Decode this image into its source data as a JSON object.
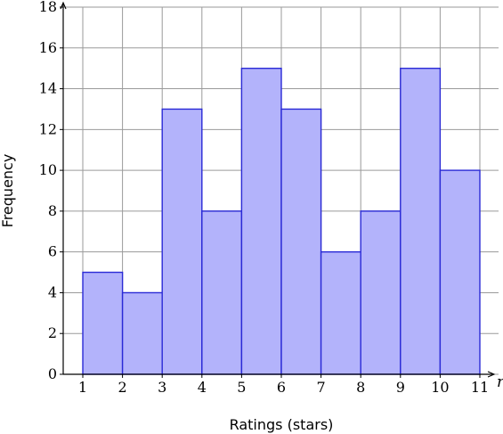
{
  "chart_data": {
    "type": "bar",
    "histogram": true,
    "bin_edges": [
      1,
      2,
      3,
      4,
      5,
      6,
      7,
      8,
      9,
      10,
      11
    ],
    "values": [
      5,
      4,
      13,
      8,
      15,
      13,
      6,
      8,
      15,
      10
    ],
    "xlabel": "Ratings (stars)",
    "ylabel": "Frequency",
    "x_axis_variable": "r",
    "xlim": [
      0.5,
      11.4
    ],
    "ylim": [
      0,
      18
    ],
    "x_ticks": [
      1,
      2,
      3,
      4,
      5,
      6,
      7,
      8,
      9,
      10,
      11
    ],
    "y_ticks": [
      0,
      2,
      4,
      6,
      8,
      10,
      12,
      14,
      16,
      18
    ],
    "grid": true,
    "colors": {
      "bar_fill": "#b3b3fb",
      "bar_stroke": "#2a2ad6",
      "grid": "#9a9a9a"
    }
  }
}
